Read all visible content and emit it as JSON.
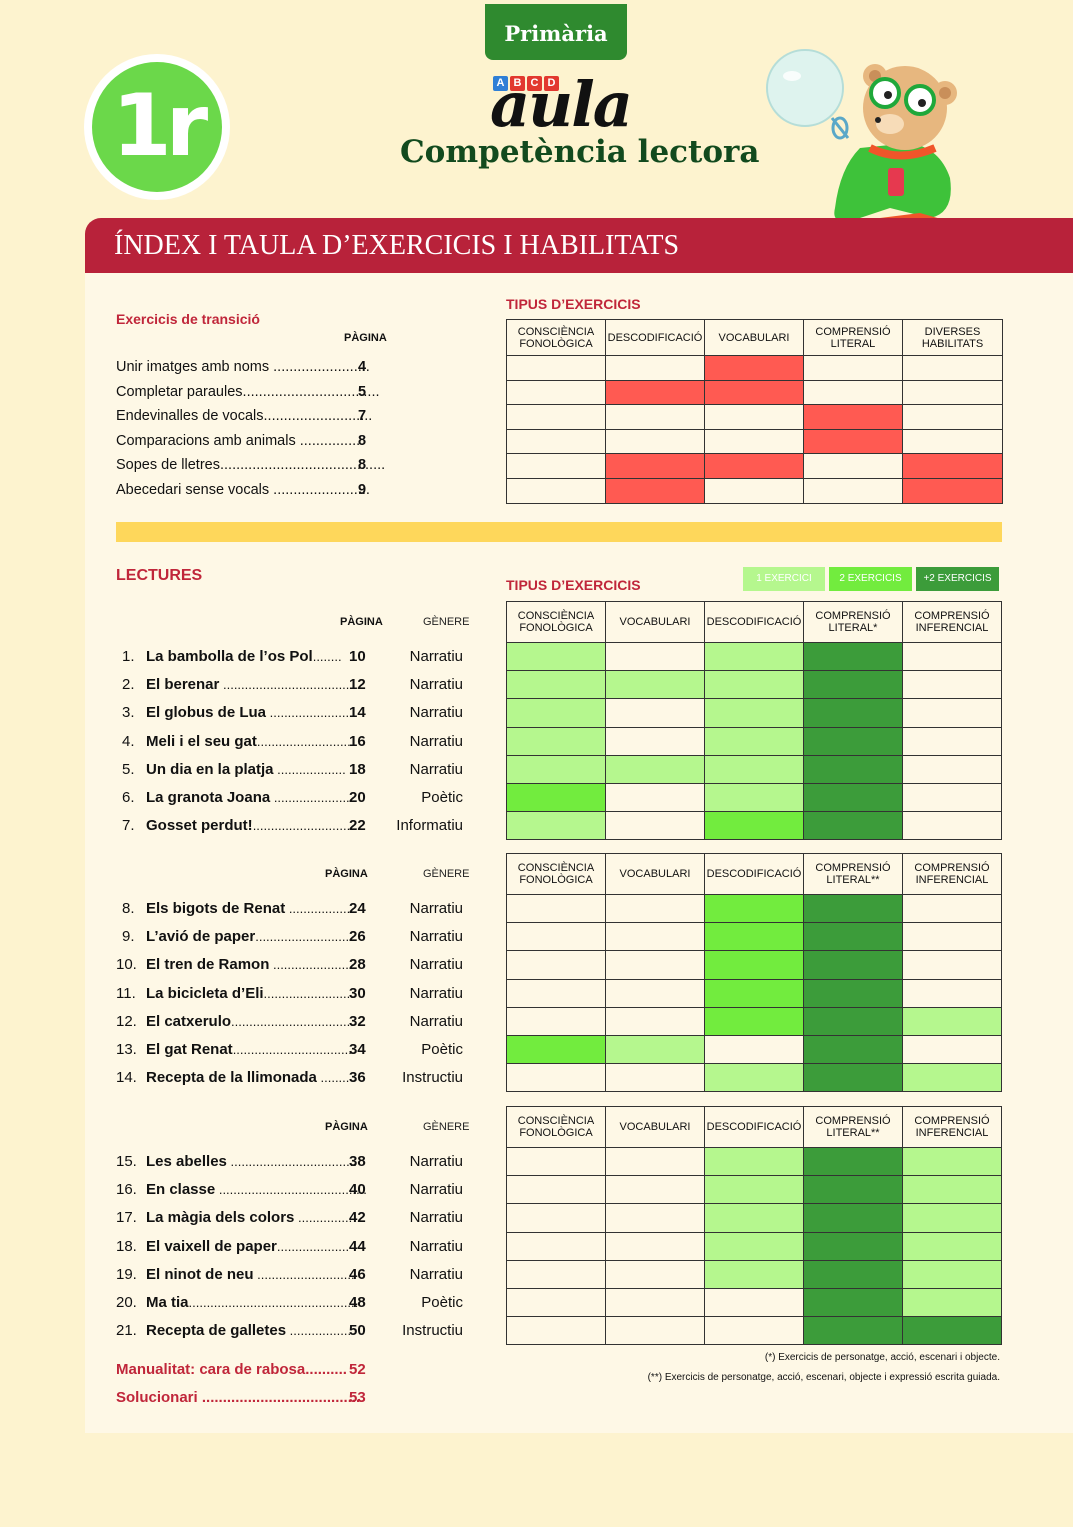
{
  "header": {
    "tab": "Primària",
    "grade": "1r",
    "abcd": [
      "A",
      "B",
      "C",
      "D"
    ],
    "brand": "aula",
    "subtitle": "Competència lectora",
    "banner": "ÍNDEX I TAULA D’EXERCICIS I HABILITATS"
  },
  "colors": {
    "red": "#ff5a52",
    "light": "#b5f78e",
    "mid": "#72ec3e",
    "dark": "#3c9c3a",
    "banner": "#b8223a",
    "yellow": "#fed75b"
  },
  "transicio": {
    "title": "Exercicis de transició",
    "page_header": "PÀGINA",
    "types_title": "TIPUS D’EXERCICIS",
    "columns": [
      "CONSCIÈNCIA FONOLÒGICA",
      "DESCODIFICACIÓ",
      "VOCABULARI",
      "COMPRENSIÓ LITERAL",
      "DIVERSES HABILITATS"
    ],
    "rows": [
      {
        "title": "Unir imatges amb noms",
        "dots": " ........................",
        "page": "4",
        "cells": [
          0,
          0,
          1,
          0,
          0
        ]
      },
      {
        "title": "Completar paraules",
        "dots": "..................................",
        "page": "5",
        "cells": [
          0,
          1,
          1,
          0,
          0
        ]
      },
      {
        "title": "Endevinalles de vocals",
        "dots": "...........................",
        "page": "7",
        "cells": [
          0,
          0,
          0,
          1,
          0
        ]
      },
      {
        "title": "Comparacions amb animals",
        "dots": " ................",
        "page": "8",
        "cells": [
          0,
          0,
          0,
          1,
          0
        ]
      },
      {
        "title": "Sopes de lletres",
        "dots": ".........................................",
        "page": "8",
        "cells": [
          0,
          1,
          1,
          0,
          1
        ]
      },
      {
        "title": "Abecedari sense vocals",
        "dots": " ........................",
        "page": "9",
        "cells": [
          0,
          1,
          0,
          0,
          1
        ]
      }
    ]
  },
  "lectures": {
    "title": "LECTURES",
    "types_title": "TIPUS D’EXERCICIS",
    "legend": [
      "1 EXERCICI",
      "2 EXERCICIS",
      "+2 EXERCICIS"
    ],
    "page_header": "PÀGINA",
    "genre_header": "GÈNERE",
    "blocks": [
      {
        "columns": [
          "CONSCIÈNCIA FONOLÒGICA",
          "VOCABULARI",
          "DESCODIFICACIÓ",
          "COMPRENSIÓ LITERAL*",
          "COMPRENSIÓ INFERENCIAL"
        ],
        "rows": [
          {
            "num": "1.",
            "title": "La bambolla de l’os Pol",
            "dots": "........",
            "page": "10",
            "genre": "Narratiu",
            "cells": [
              1,
              0,
              1,
              3,
              0
            ]
          },
          {
            "num": "2.",
            "title": "El berenar",
            "dots": " .......................................",
            "page": "12",
            "genre": "Narratiu",
            "cells": [
              1,
              1,
              1,
              3,
              0
            ]
          },
          {
            "num": "3.",
            "title": "El globus de Lua",
            "dots": " ........................",
            "page": "14",
            "genre": "Narratiu",
            "cells": [
              1,
              0,
              1,
              3,
              0
            ]
          },
          {
            "num": "4.",
            "title": "Meli i el seu gat",
            "dots": "..........................",
            "page": "16",
            "genre": "Narratiu",
            "cells": [
              1,
              0,
              1,
              3,
              0
            ]
          },
          {
            "num": "5.",
            "title": "Un dia en la platja",
            "dots": " ...................",
            "page": "18",
            "genre": "Narratiu",
            "cells": [
              1,
              1,
              1,
              3,
              0
            ]
          },
          {
            "num": "6.",
            "title": "La granota Joana",
            "dots": " .......................",
            "page": "20",
            "genre": "Poètic",
            "cells": [
              2,
              0,
              1,
              3,
              0
            ]
          },
          {
            "num": "7.",
            "title": "Gosset perdut!",
            "dots": "............................",
            "page": "22",
            "genre": "Informatiu",
            "cells": [
              1,
              0,
              2,
              3,
              0
            ]
          }
        ]
      },
      {
        "columns": [
          "CONSCIÈNCIA FONOLÒGICA",
          "VOCABULARI",
          "DESCODIFICACIÓ",
          "COMPRENSIÓ LITERAL**",
          "COMPRENSIÓ INFERENCIAL"
        ],
        "rows": [
          {
            "num": "8.",
            "title": "Els bigots de Renat",
            "dots": " ..................",
            "page": "24",
            "genre": "Narratiu",
            "cells": [
              0,
              0,
              2,
              3,
              0
            ]
          },
          {
            "num": "9.",
            "title": "L’avió de paper",
            "dots": "............................",
            "page": "26",
            "genre": "Narratiu",
            "cells": [
              0,
              0,
              2,
              3,
              0
            ]
          },
          {
            "num": "10.",
            "title": "El tren de Ramon",
            "dots": " ......................",
            "page": "28",
            "genre": "Narratiu",
            "cells": [
              0,
              0,
              2,
              3,
              0
            ]
          },
          {
            "num": "11.",
            "title": "La bicicleta d’Eli",
            "dots": ".........................",
            "page": "30",
            "genre": "Narratiu",
            "cells": [
              0,
              0,
              2,
              3,
              0
            ]
          },
          {
            "num": "12.",
            "title": "El catxerulo",
            "dots": "..................................",
            "page": "32",
            "genre": "Narratiu",
            "cells": [
              0,
              0,
              2,
              3,
              1
            ]
          },
          {
            "num": "13.",
            "title": "El gat Renat",
            "dots": ".................................",
            "page": "34",
            "genre": "Poètic",
            "cells": [
              2,
              1,
              0,
              3,
              0
            ]
          },
          {
            "num": "14.",
            "title": "Recepta de la llimonada",
            "dots": " ........",
            "page": "36",
            "genre": "Instructiu",
            "cells": [
              0,
              0,
              1,
              3,
              1
            ]
          }
        ]
      },
      {
        "columns": [
          "CONSCIÈNCIA FONOLÒGICA",
          "VOCABULARI",
          "DESCODIFICACIÓ",
          "COMPRENSIÓ LITERAL**",
          "COMPRENSIÓ INFERENCIAL"
        ],
        "rows": [
          {
            "num": "15.",
            "title": "Les abelles",
            "dots": " ...................................",
            "page": "38",
            "genre": "Narratiu",
            "cells": [
              0,
              0,
              1,
              3,
              1
            ]
          },
          {
            "num": "16.",
            "title": "En classe",
            "dots": " .........................................",
            "page": "40",
            "genre": "Narratiu",
            "cells": [
              0,
              0,
              1,
              3,
              1
            ]
          },
          {
            "num": "17.",
            "title": "La màgia dels colors",
            "dots": " ...............",
            "page": "42",
            "genre": "Narratiu",
            "cells": [
              0,
              0,
              1,
              3,
              1
            ]
          },
          {
            "num": "18.",
            "title": "El vaixell de paper",
            "dots": "....................",
            "page": "44",
            "genre": "Narratiu",
            "cells": [
              0,
              0,
              1,
              3,
              1
            ]
          },
          {
            "num": "19.",
            "title": "El ninot de neu",
            "dots": " ...........................",
            "page": "46",
            "genre": "Narratiu",
            "cells": [
              0,
              0,
              1,
              3,
              1
            ]
          },
          {
            "num": "20.",
            "title": "Ma tia",
            "dots": "...............................................",
            "page": "48",
            "genre": "Poètic",
            "cells": [
              0,
              0,
              0,
              3,
              1
            ]
          },
          {
            "num": "21.",
            "title": "Recepta de galletes",
            "dots": " .................",
            "page": "50",
            "genre": "Instructiu",
            "cells": [
              0,
              0,
              0,
              3,
              3
            ]
          }
        ]
      }
    ],
    "extras": [
      {
        "title": "Manualitat: cara de rabosa",
        "dots": "..........",
        "page": "52"
      },
      {
        "title": "Solucionari",
        "dots": " ......................................",
        "page": "53"
      }
    ],
    "footnotes": [
      "(*) Exercicis de personatge, acció, escenari i objecte.",
      "(**) Exercicis de personatge, acció, escenari, objecte i expressió escrita guiada."
    ]
  }
}
